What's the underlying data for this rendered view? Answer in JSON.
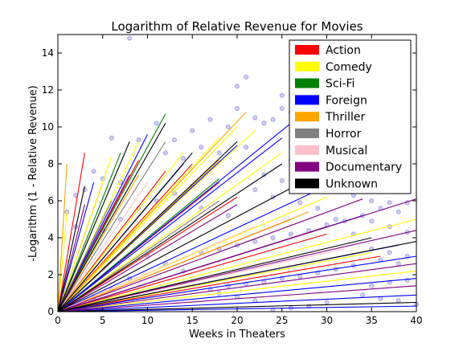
{
  "chart_data": {
    "type": "line",
    "title": "Logarithm of Relative Revenue for Movies",
    "xlabel": "Weeks in Theaters",
    "ylabel": "-Logarithm (1 - Relative Revenue)",
    "xlim": [
      0,
      40
    ],
    "ylim": [
      0,
      15
    ],
    "xticks": [
      0,
      5,
      10,
      15,
      20,
      25,
      30,
      35,
      40
    ],
    "yticks": [
      0,
      2,
      4,
      6,
      8,
      10,
      12,
      14
    ],
    "grid": false,
    "legend_position": "upper-right",
    "point_color": "#6f6fd8",
    "series": [
      {
        "name": "Action",
        "color": "#ff0000",
        "lines": [
          {
            "x_end": 3,
            "y_end": 8.6
          },
          {
            "x_end": 5,
            "y_end": 7.0
          },
          {
            "x_end": 9,
            "y_end": 8.2
          },
          {
            "x_end": 12,
            "y_end": 7.6
          },
          {
            "x_end": 15,
            "y_end": 8.0
          },
          {
            "x_end": 18,
            "y_end": 7.0
          },
          {
            "x_end": 20,
            "y_end": 6.2
          },
          {
            "x_end": 26,
            "y_end": 5.0
          },
          {
            "x_end": 30,
            "y_end": 4.2
          },
          {
            "x_end": 36,
            "y_end": 3.0
          }
        ]
      },
      {
        "name": "Comedy",
        "color": "#ffff00",
        "lines": [
          {
            "x_end": 1,
            "y_end": 5.4
          },
          {
            "x_end": 6,
            "y_end": 8.4
          },
          {
            "x_end": 9,
            "y_end": 9.2
          },
          {
            "x_end": 14,
            "y_end": 8.6
          },
          {
            "x_end": 18,
            "y_end": 9.4
          },
          {
            "x_end": 20,
            "y_end": 10.0
          },
          {
            "x_end": 22,
            "y_end": 9.8
          },
          {
            "x_end": 25,
            "y_end": 8.6
          },
          {
            "x_end": 30,
            "y_end": 6.2
          },
          {
            "x_end": 35,
            "y_end": 3.2
          },
          {
            "x_end": 40,
            "y_end": 5.0
          },
          {
            "x_end": 40,
            "y_end": 2.2
          }
        ]
      },
      {
        "name": "Sci-Fi",
        "color": "#008000",
        "lines": [
          {
            "x_end": 7,
            "y_end": 8.6
          },
          {
            "x_end": 12,
            "y_end": 10.7
          },
          {
            "x_end": 18,
            "y_end": 7.2
          }
        ]
      },
      {
        "name": "Foreign",
        "color": "#0000ff",
        "lines": [
          {
            "x_end": 4,
            "y_end": 7.0
          },
          {
            "x_end": 10,
            "y_end": 9.6
          },
          {
            "x_end": 14,
            "y_end": 8.0
          },
          {
            "x_end": 20,
            "y_end": 9.0
          },
          {
            "x_end": 25,
            "y_end": 9.4
          },
          {
            "x_end": 26,
            "y_end": 10.2
          },
          {
            "x_end": 30,
            "y_end": 6.8
          },
          {
            "x_end": 34,
            "y_end": 5.2
          },
          {
            "x_end": 38,
            "y_end": 3.6
          },
          {
            "x_end": 40,
            "y_end": 3.0
          },
          {
            "x_end": 40,
            "y_end": 1.8
          },
          {
            "x_end": 40,
            "y_end": 0.9
          },
          {
            "x_end": 40,
            "y_end": 0.3
          }
        ]
      },
      {
        "name": "Thriller",
        "color": "#ffa500",
        "lines": [
          {
            "x_end": 1,
            "y_end": 8.0
          },
          {
            "x_end": 9,
            "y_end": 7.4
          },
          {
            "x_end": 18,
            "y_end": 8.2
          },
          {
            "x_end": 21,
            "y_end": 10.8
          },
          {
            "x_end": 28,
            "y_end": 5.4
          }
        ]
      },
      {
        "name": "Horror",
        "color": "#808080",
        "lines": [
          {
            "x_end": 6,
            "y_end": 6.0
          },
          {
            "x_end": 12,
            "y_end": 9.2
          },
          {
            "x_end": 18,
            "y_end": 6.0
          }
        ]
      },
      {
        "name": "Musical",
        "color": "#ffc0cb",
        "lines": [
          {
            "x_end": 10,
            "y_end": 7.0
          },
          {
            "x_end": 22,
            "y_end": 4.6
          },
          {
            "x_end": 32,
            "y_end": 3.4
          }
        ]
      },
      {
        "name": "Documentary",
        "color": "#800080",
        "lines": [
          {
            "x_end": 3,
            "y_end": 5.8
          },
          {
            "x_end": 8,
            "y_end": 7.4
          },
          {
            "x_end": 20,
            "y_end": 5.8
          },
          {
            "x_end": 30,
            "y_end": 4.6
          },
          {
            "x_end": 34,
            "y_end": 6.1
          },
          {
            "x_end": 40,
            "y_end": 6.1
          },
          {
            "x_end": 40,
            "y_end": 4.4
          },
          {
            "x_end": 40,
            "y_end": 2.6
          },
          {
            "x_end": 40,
            "y_end": 1.4
          }
        ]
      },
      {
        "name": "Unknown",
        "color": "#000000",
        "lines": [
          {
            "x_end": 3,
            "y_end": 6.8
          },
          {
            "x_end": 8,
            "y_end": 9.2
          },
          {
            "x_end": 12,
            "y_end": 10.2
          },
          {
            "x_end": 15,
            "y_end": 8.6
          },
          {
            "x_end": 20,
            "y_end": 9.2
          },
          {
            "x_end": 25,
            "y_end": 8.0
          },
          {
            "x_end": 28,
            "y_end": 7.2
          },
          {
            "x_end": 35,
            "y_end": 4.0
          },
          {
            "x_end": 40,
            "y_end": 3.8
          },
          {
            "x_end": 40,
            "y_end": 0.5
          }
        ]
      }
    ],
    "points": [
      [
        8,
        14.8
      ],
      [
        21,
        12.7
      ],
      [
        20,
        12.2
      ],
      [
        25,
        11.7
      ],
      [
        20,
        11.0
      ],
      [
        26,
        10.8
      ],
      [
        22,
        10.5
      ],
      [
        24,
        10.4
      ],
      [
        25,
        11.0
      ],
      [
        17,
        10.4
      ],
      [
        23,
        10.2
      ],
      [
        19,
        10.0
      ],
      [
        15,
        9.8
      ],
      [
        27,
        9.6
      ],
      [
        11,
        10.2
      ],
      [
        6,
        9.4
      ],
      [
        9,
        9.3
      ],
      [
        13,
        9.3
      ],
      [
        30,
        9.0
      ],
      [
        16,
        8.9
      ],
      [
        28,
        8.6
      ],
      [
        26,
        8.2
      ],
      [
        32,
        7.9
      ],
      [
        29,
        7.6
      ],
      [
        4,
        7.6
      ],
      [
        5,
        7.2
      ],
      [
        7,
        7.0
      ],
      [
        3,
        6.6
      ],
      [
        2,
        6.3
      ],
      [
        1,
        5.4
      ],
      [
        2,
        4.6
      ],
      [
        12,
        8.6
      ],
      [
        14,
        8.3
      ],
      [
        18,
        8.6
      ],
      [
        21,
        8.9
      ],
      [
        23,
        7.4
      ],
      [
        25,
        7.1
      ],
      [
        27,
        6.8
      ],
      [
        31,
        6.6
      ],
      [
        33,
        6.3
      ],
      [
        35,
        6.0
      ],
      [
        37,
        5.9
      ],
      [
        39,
        5.9
      ],
      [
        36,
        5.6
      ],
      [
        38,
        5.4
      ],
      [
        34,
        5.2
      ],
      [
        32,
        4.9
      ],
      [
        30,
        4.7
      ],
      [
        28,
        4.4
      ],
      [
        26,
        4.2
      ],
      [
        24,
        4.0
      ],
      [
        22,
        3.8
      ],
      [
        20,
        3.6
      ],
      [
        18,
        3.4
      ],
      [
        16,
        3.2
      ],
      [
        35,
        3.4
      ],
      [
        37,
        3.2
      ],
      [
        39,
        3.0
      ],
      [
        36,
        2.8
      ],
      [
        38,
        2.6
      ],
      [
        33,
        2.5
      ],
      [
        31,
        2.3
      ],
      [
        29,
        2.1
      ],
      [
        27,
        1.9
      ],
      [
        25,
        1.8
      ],
      [
        23,
        1.6
      ],
      [
        21,
        1.5
      ],
      [
        19,
        1.4
      ],
      [
        17,
        1.2
      ],
      [
        35,
        1.4
      ],
      [
        37,
        1.6
      ],
      [
        39,
        1.7
      ],
      [
        34,
        0.9
      ],
      [
        36,
        0.7
      ],
      [
        38,
        0.6
      ],
      [
        40,
        0.4
      ],
      [
        30,
        0.5
      ],
      [
        28,
        0.3
      ],
      [
        26,
        0.2
      ],
      [
        24,
        0.1
      ],
      [
        22,
        0.6
      ],
      [
        20,
        0.8
      ],
      [
        18,
        1.0
      ],
      [
        15,
        6.8
      ],
      [
        13,
        6.4
      ],
      [
        11,
        6.0
      ],
      [
        9,
        5.6
      ],
      [
        7,
        5.0
      ],
      [
        5,
        4.4
      ],
      [
        10,
        3.0
      ],
      [
        12,
        2.6
      ],
      [
        14,
        2.2
      ],
      [
        8,
        1.8
      ],
      [
        6,
        1.2
      ],
      [
        4,
        0.8
      ],
      [
        16,
        5.6
      ],
      [
        19,
        5.2
      ],
      [
        22,
        6.6
      ],
      [
        24,
        6.2
      ],
      [
        27,
        5.9
      ],
      [
        29,
        5.6
      ],
      [
        31,
        5.0
      ],
      [
        33,
        4.2
      ],
      [
        35,
        4.9
      ],
      [
        37,
        4.6
      ],
      [
        39,
        4.3
      ]
    ]
  }
}
